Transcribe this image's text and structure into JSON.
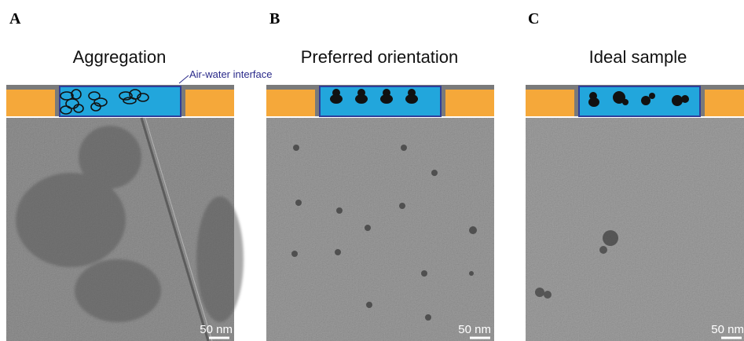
{
  "panels": [
    {
      "letter": "A",
      "title": "Aggregation",
      "scale_bar": "50 nm",
      "annotation": "Air-water interface"
    },
    {
      "letter": "B",
      "title": "Preferred orientation",
      "scale_bar": "50 nm"
    },
    {
      "letter": "C",
      "title": "Ideal sample",
      "scale_bar": "50 nm"
    }
  ]
}
